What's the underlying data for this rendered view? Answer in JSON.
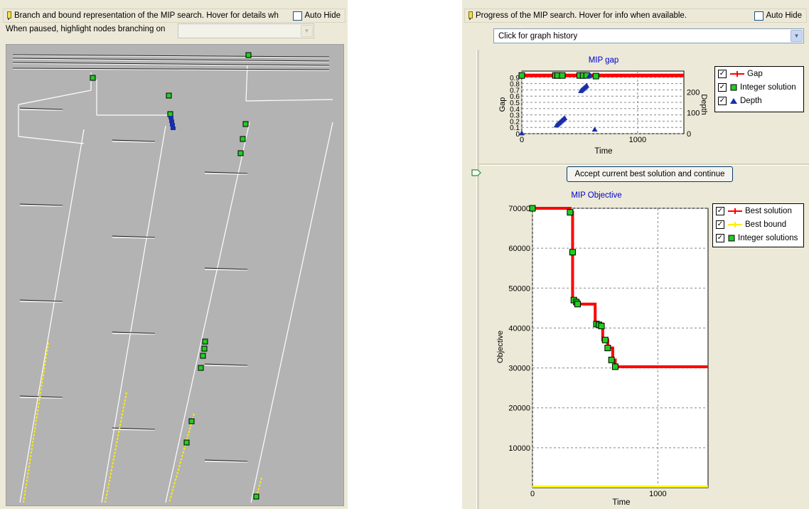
{
  "left_panel": {
    "header_text": "Branch and bound representation of the MIP search. Hover for details wh",
    "auto_hide_label": "Auto Hide",
    "highlight_label": "When paused, highlight nodes branching on",
    "highlight_value": ""
  },
  "right_panel": {
    "header_text": "Progress of the MIP search. Hover for info when available.",
    "auto_hide_label": "Auto Hide",
    "history_dropdown": "Click for graph history",
    "accept_button": "Accept current best solution and continue",
    "gap_chart": {
      "title": "MIP gap",
      "xlabel": "Time",
      "ylabel_left": "Gap",
      "ylabel_right": "Depth",
      "legend": {
        "gap": "Gap",
        "integer": "Integer solution",
        "depth": "Depth"
      }
    },
    "objective_chart": {
      "title": "MIP Objective",
      "xlabel": "Time",
      "ylabel": "Objective",
      "legend": {
        "best_solution": "Best solution",
        "best_bound": "Best bound",
        "integer": "Integer solutions"
      }
    }
  },
  "colors": {
    "gap_line": "#ff0000",
    "integer_marker": "#22cc22",
    "depth_marker": "#1a2ea8",
    "best_bound": "#ffff00",
    "tree_background": "#b3b3b3",
    "tree_branch": "#ffffff",
    "tree_leaf_highlight": "#ffee00"
  },
  "chart_data": [
    {
      "type": "line",
      "title": "MIP gap",
      "xlabel": "Time",
      "ylabel": "Gap",
      "y2label": "Depth",
      "xlim": [
        0,
        1400
      ],
      "ylim": [
        0,
        1
      ],
      "y2lim": [
        0,
        300
      ],
      "x_ticks": [
        0,
        1000
      ],
      "y_ticks": [
        0,
        0.1,
        0.2,
        0.3,
        0.4,
        0.5,
        0.6,
        0.7,
        0.8,
        0.9
      ],
      "y2_ticks": [
        0,
        100,
        200
      ],
      "series": [
        {
          "name": "Gap",
          "points": [
            [
              0,
              0.93
            ],
            [
              280,
              0.93
            ],
            [
              300,
              0.93
            ],
            [
              320,
              0.93
            ],
            [
              350,
              0.93
            ],
            [
              500,
              0.93
            ],
            [
              520,
              0.93
            ],
            [
              540,
              0.93
            ],
            [
              580,
              0.93
            ],
            [
              630,
              0.93
            ],
            [
              1400,
              0.93
            ]
          ]
        },
        {
          "name": "Integer solution",
          "points": [
            [
              0,
              0.93
            ],
            [
              290,
              0.93
            ],
            [
              310,
              0.93
            ],
            [
              350,
              0.93
            ],
            [
              500,
              0.93
            ],
            [
              530,
              0.93
            ],
            [
              560,
              0.93
            ],
            [
              640,
              0.92
            ]
          ]
        },
        {
          "name": "Depth",
          "points": [
            [
              0,
              2
            ],
            [
              300,
              40
            ],
            [
              310,
              45
            ],
            [
              320,
              50
            ],
            [
              330,
              55
            ],
            [
              340,
              60
            ],
            [
              350,
              65
            ],
            [
              360,
              70
            ],
            [
              370,
              75
            ],
            [
              510,
              205
            ],
            [
              520,
              210
            ],
            [
              530,
              215
            ],
            [
              540,
              220
            ],
            [
              550,
              225
            ],
            [
              560,
              230
            ],
            [
              580,
              275
            ],
            [
              590,
              280
            ],
            [
              630,
              20
            ]
          ]
        }
      ]
    },
    {
      "type": "line",
      "title": "MIP Objective",
      "xlabel": "Time",
      "ylabel": "Objective",
      "xlim": [
        0,
        1400
      ],
      "ylim": [
        0,
        70000
      ],
      "x_ticks": [
        0,
        1000
      ],
      "y_ticks": [
        10000,
        20000,
        30000,
        40000,
        50000,
        60000,
        70000
      ],
      "series": [
        {
          "name": "Best solution",
          "points": [
            [
              0,
              70000
            ],
            [
              300,
              70000
            ],
            [
              300,
              69000
            ],
            [
              320,
              69000
            ],
            [
              320,
              47000
            ],
            [
              350,
              47000
            ],
            [
              350,
              46000
            ],
            [
              500,
              46000
            ],
            [
              500,
              41000
            ],
            [
              560,
              41000
            ],
            [
              560,
              37000
            ],
            [
              600,
              37000
            ],
            [
              600,
              35000
            ],
            [
              640,
              35000
            ],
            [
              640,
              32000
            ],
            [
              660,
              32000
            ],
            [
              660,
              30300
            ],
            [
              1400,
              30300
            ]
          ]
        },
        {
          "name": "Best bound",
          "points": [
            [
              0,
              300
            ],
            [
              1400,
              300
            ]
          ]
        },
        {
          "name": "Integer solutions",
          "points": [
            [
              0,
              70000
            ],
            [
              300,
              69000
            ],
            [
              320,
              59000
            ],
            [
              330,
              47000
            ],
            [
              350,
              46500
            ],
            [
              360,
              46000
            ],
            [
              510,
              41000
            ],
            [
              530,
              40800
            ],
            [
              550,
              40500
            ],
            [
              580,
              37000
            ],
            [
              600,
              35000
            ],
            [
              630,
              32000
            ],
            [
              660,
              30300
            ]
          ]
        }
      ]
    }
  ]
}
